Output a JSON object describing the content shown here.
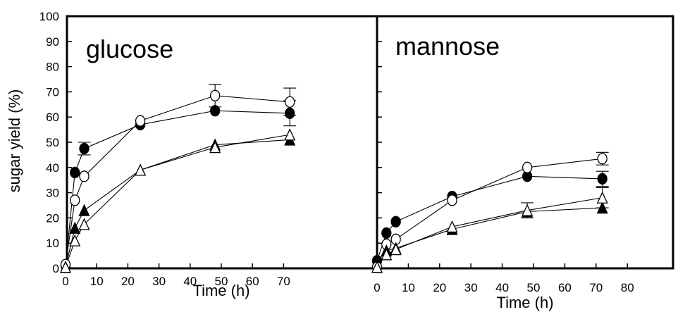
{
  "figure": {
    "y_axis_title": "sugar yield (%)",
    "y_ticks": [
      "0",
      "10",
      "20",
      "30",
      "40",
      "50",
      "60",
      "70",
      "80",
      "90",
      "100"
    ]
  },
  "chart_data": [
    {
      "type": "line",
      "title": "glucose",
      "xlabel": "Time (h)",
      "ylabel": "sugar yield (%)",
      "xlim": [
        0,
        80
      ],
      "ylim": [
        0,
        100
      ],
      "x_tick_labels": [
        "0",
        "10",
        "20",
        "30",
        "40",
        "50",
        "60",
        "70"
      ],
      "series": [
        {
          "marker": "circle-filled",
          "x": [
            0,
            3,
            6,
            24,
            48,
            72
          ],
          "y": [
            1,
            38,
            47.5,
            57,
            62.5,
            61.5
          ],
          "err": [
            0,
            0,
            2.5,
            0,
            0,
            5
          ]
        },
        {
          "marker": "circle-open",
          "x": [
            0,
            3,
            6,
            24,
            48,
            72
          ],
          "y": [
            1.5,
            27,
            36.5,
            58.5,
            68.5,
            66
          ],
          "err": [
            0,
            0,
            0,
            0,
            4.5,
            5.5
          ]
        },
        {
          "marker": "triangle-filled",
          "x": [
            0,
            3,
            6,
            24,
            48,
            72
          ],
          "y": [
            0.5,
            16,
            23,
            39,
            49,
            51
          ],
          "err": [
            0,
            0,
            0,
            0,
            0,
            0
          ]
        },
        {
          "marker": "triangle-open",
          "x": [
            0,
            3,
            6,
            24,
            48,
            72
          ],
          "y": [
            0.5,
            11,
            17.5,
            39,
            48,
            53
          ],
          "err": [
            0,
            0,
            0,
            0,
            0,
            0
          ]
        }
      ]
    },
    {
      "type": "line",
      "title": "mannose",
      "xlabel": "Time (h)",
      "ylabel": "sugar yield (%)",
      "xlim": [
        0,
        80
      ],
      "ylim": [
        0,
        100
      ],
      "x_tick_labels": [
        "0",
        "10",
        "20",
        "30",
        "40",
        "50",
        "60",
        "70",
        "80"
      ],
      "series": [
        {
          "marker": "circle-filled",
          "x": [
            0,
            3,
            6,
            24,
            48,
            72
          ],
          "y": [
            3,
            14,
            18.5,
            28.5,
            36.5,
            35.5
          ],
          "err": [
            0,
            0,
            0,
            0,
            0,
            3
          ]
        },
        {
          "marker": "circle-open",
          "x": [
            0,
            3,
            6,
            24,
            48,
            72
          ],
          "y": [
            0.5,
            9.5,
            11.5,
            27,
            40,
            43.5
          ],
          "err": [
            0,
            0,
            0,
            0,
            0,
            2.5
          ]
        },
        {
          "marker": "triangle-filled",
          "x": [
            0,
            3,
            6,
            24,
            48,
            72
          ],
          "y": [
            0.5,
            7,
            8,
            15.5,
            22.5,
            24
          ],
          "err": [
            0,
            0,
            0,
            0,
            0,
            0
          ]
        },
        {
          "marker": "triangle-open",
          "x": [
            0,
            3,
            6,
            24,
            48,
            72
          ],
          "y": [
            0.5,
            5.5,
            7.5,
            16.5,
            23,
            28
          ],
          "err": [
            0,
            0,
            0,
            0,
            3,
            4
          ]
        }
      ]
    }
  ]
}
